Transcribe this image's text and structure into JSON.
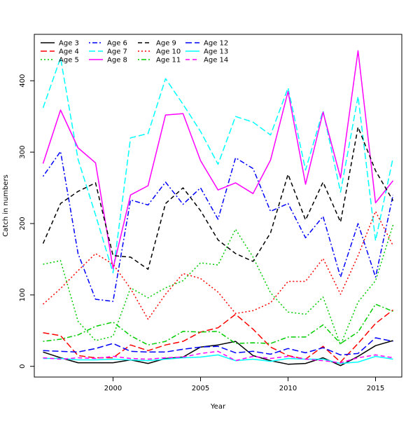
{
  "chart_data": {
    "type": "line",
    "title": "",
    "xlabel": "Year",
    "ylabel": "Catch in numbers",
    "xlim": [
      1995.5,
      2016.5
    ],
    "ylim": [
      -15,
      465
    ],
    "x_ticks": [
      2000,
      2005,
      2010,
      2015
    ],
    "y_ticks": [
      0,
      100,
      200,
      300,
      400
    ],
    "grid": false,
    "legend_position": "top-left",
    "x": [
      1996,
      1997,
      1998,
      1999,
      2000,
      2001,
      2002,
      2003,
      2004,
      2005,
      2006,
      2007,
      2008,
      2009,
      2010,
      2011,
      2012,
      2013,
      2014,
      2015,
      2016
    ],
    "series": [
      {
        "name": "Age 3",
        "color": "#000000",
        "dash": "solid",
        "values": [
          20,
          12,
          5,
          5,
          5,
          9,
          4,
          11,
          13,
          27,
          30,
          35,
          15,
          8,
          3,
          4,
          12,
          1,
          14,
          29,
          36
        ]
      },
      {
        "name": "Age 4",
        "color": "#ff0000",
        "dash": "longdash",
        "values": [
          47,
          43,
          15,
          12,
          12,
          30,
          22,
          30,
          35,
          48,
          54,
          73,
          52,
          27,
          15,
          10,
          28,
          6,
          32,
          60,
          79
        ]
      },
      {
        "name": "Age 5",
        "color": "#00cd00",
        "dash": "dotted",
        "values": [
          143,
          148,
          63,
          36,
          42,
          110,
          96,
          110,
          120,
          145,
          142,
          192,
          153,
          103,
          76,
          73,
          97,
          30,
          90,
          120,
          198
        ]
      },
      {
        "name": "Age 6",
        "color": "#0000ff",
        "dash": "dotdash",
        "values": [
          266,
          301,
          158,
          94,
          91,
          233,
          226,
          258,
          227,
          250,
          206,
          292,
          277,
          217,
          228,
          180,
          210,
          125,
          200,
          125,
          240
        ]
      },
      {
        "name": "Age 7",
        "color": "#00ffff",
        "dash": "longdash",
        "values": [
          362,
          432,
          290,
          212,
          131,
          320,
          326,
          403,
          367,
          329,
          283,
          350,
          342,
          324,
          390,
          275,
          358,
          244,
          378,
          176,
          292
        ]
      },
      {
        "name": "Age 8",
        "color": "#ff00ff",
        "dash": "solid",
        "values": [
          284,
          359,
          306,
          285,
          137,
          240,
          253,
          352,
          354,
          288,
          247,
          257,
          242,
          289,
          385,
          255,
          356,
          264,
          442,
          229,
          260
        ]
      },
      {
        "name": "Age 9",
        "color": "#000000",
        "dash": "dashed",
        "values": [
          172,
          228,
          245,
          257,
          155,
          153,
          136,
          228,
          250,
          218,
          177,
          158,
          147,
          187,
          269,
          205,
          258,
          202,
          335,
          274,
          232
        ]
      },
      {
        "name": "Age 10",
        "color": "#ff0000",
        "dash": "dotted",
        "values": [
          87,
          109,
          134,
          158,
          143,
          109,
          66,
          101,
          130,
          123,
          104,
          74,
          78,
          89,
          119,
          119,
          151,
          101,
          155,
          217,
          169
        ]
      },
      {
        "name": "Age 11",
        "color": "#00cd00",
        "dash": "dotdash",
        "values": [
          35,
          38,
          44,
          56,
          62,
          43,
          30,
          35,
          49,
          48,
          49,
          32,
          33,
          32,
          41,
          41,
          58,
          32,
          48,
          87,
          77
        ]
      },
      {
        "name": "Age 12",
        "color": "#0000ff",
        "dash": "longdash",
        "values": [
          22,
          21,
          20,
          25,
          32,
          21,
          20,
          20,
          24,
          27,
          28,
          19,
          21,
          17,
          25,
          19,
          26,
          16,
          18,
          40,
          35
        ]
      },
      {
        "name": "Age 13",
        "color": "#00ffff",
        "dash": "solid",
        "values": [
          11,
          11,
          9,
          9,
          10,
          9,
          8,
          10,
          12,
          13,
          16,
          8,
          10,
          7,
          11,
          10,
          10,
          4,
          6,
          14,
          10
        ]
      },
      {
        "name": "Age 14",
        "color": "#ff00ff",
        "dash": "dashed",
        "values": [
          12,
          10,
          12,
          11,
          14,
          11,
          10,
          12,
          13,
          18,
          21,
          8,
          14,
          11,
          14,
          10,
          8,
          5,
          12,
          16,
          12
        ]
      }
    ]
  }
}
